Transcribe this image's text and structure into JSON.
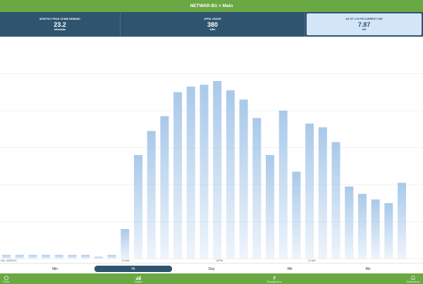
{
  "header": {
    "title": "NETWAR-B1 > Main"
  },
  "stats": [
    {
      "label": "MONTHLY PEAK 15 MIN DEMAND",
      "value": "23.2",
      "unit": "kilowatts"
    },
    {
      "label": "APRIL USAGE",
      "value": "380",
      "unit": "kWh"
    },
    {
      "label": "AS OF 1:15 PM CURRENT USE",
      "value": "7.87",
      "unit": "kW"
    }
  ],
  "chart_data": {
    "type": "bar",
    "x_tick_labels": [
      "Sat, 4/9/2022",
      "10 AM",
      "12PM",
      "12 AM"
    ],
    "values": [
      1.0,
      1.0,
      1.0,
      1.0,
      1.0,
      1.0,
      1.0,
      0.5,
      1.0,
      8.0,
      28.0,
      34.5,
      38.5,
      45.0,
      46.5,
      47.0,
      48.0,
      45.5,
      43.0,
      38.0,
      28.0,
      40.0,
      23.5,
      36.5,
      35.5,
      31.5,
      19.5,
      17.5,
      16.0,
      15.0,
      20.5
    ],
    "ylim": [
      0,
      60
    ],
    "grid": true,
    "color": "#a9c9ea"
  },
  "ranges": {
    "options": [
      "Min",
      "Hr",
      "Day",
      "Wk",
      "Mo"
    ],
    "active": "Hr"
  },
  "tabs": [
    {
      "label": "Home",
      "icon": "home-icon"
    },
    {
      "label": "Graphs",
      "icon": "graphs-icon"
    },
    {
      "label": "Management",
      "icon": "management-icon"
    },
    {
      "label": "Notifications",
      "icon": "bell-icon"
    }
  ]
}
